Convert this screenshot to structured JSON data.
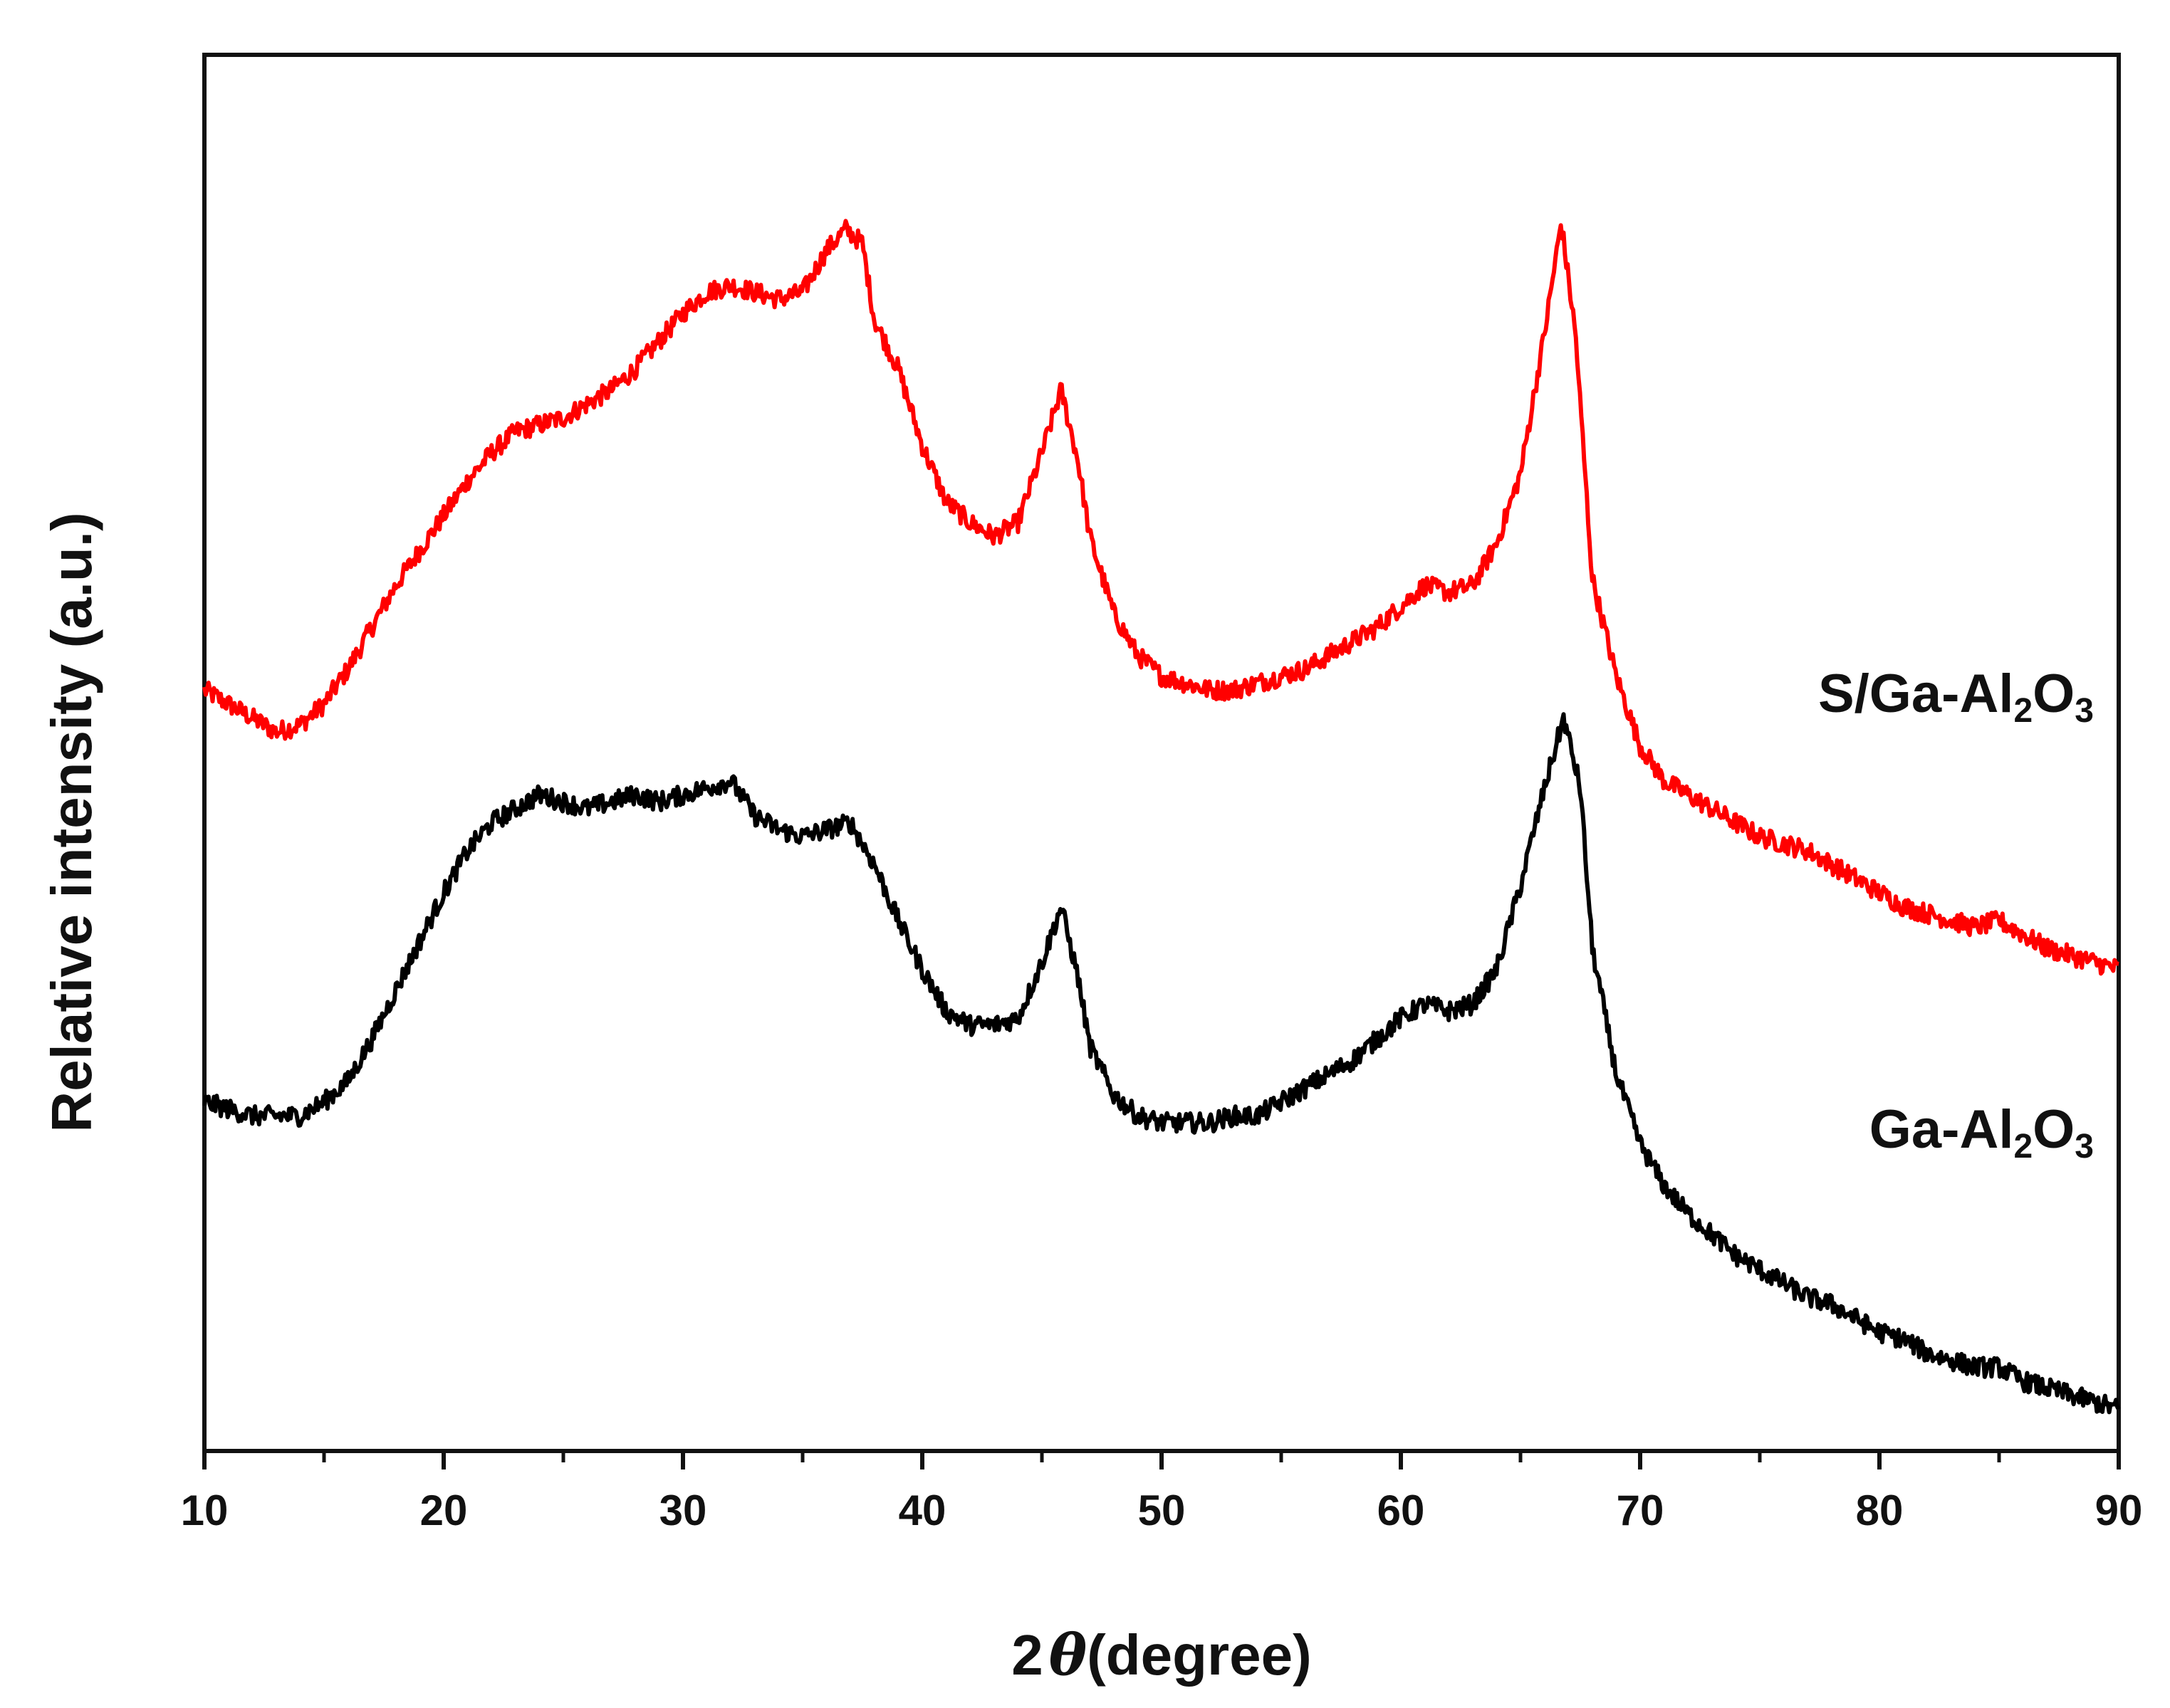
{
  "chart_data": {
    "type": "line",
    "title": "",
    "xlabel_prefix": "2",
    "xlabel_symbol": "θ",
    "xlabel_suffix": "(degree)",
    "ylabel": "Relative intensity (a.u.)",
    "xlim": [
      10,
      90
    ],
    "ylim": [
      0,
      2.0
    ],
    "x_major_ticks": [
      10,
      20,
      30,
      40,
      50,
      60,
      70,
      80,
      90
    ],
    "x_minor_ticks": [
      15,
      25,
      35,
      45,
      55,
      65,
      75,
      85
    ],
    "y_ticks_shown": false,
    "grid": false,
    "legend": "inline labels at right end of each curve",
    "series": [
      {
        "name": "S/Ga-Al2O3",
        "label_main": "S/Ga-Al",
        "label_sub1": "2",
        "label_o": "O",
        "label_sub2": "3",
        "color": "#ff0000",
        "x": [
          10,
          11,
          12,
          13,
          14,
          15,
          16,
          17,
          18,
          19,
          20,
          21,
          22,
          23,
          24,
          25,
          26,
          27,
          28,
          29,
          30,
          31,
          32,
          33,
          34,
          35,
          36,
          36.8,
          37.5,
          38,
          39,
          40,
          41,
          42,
          43,
          44,
          45,
          45.8,
          46.5,
          47,
          48,
          49,
          50,
          51,
          52,
          53,
          54,
          55,
          56,
          57,
          58,
          59,
          60,
          61,
          62,
          63,
          64,
          65,
          66,
          66.7,
          67.3,
          68,
          69,
          70,
          71,
          72,
          73,
          74,
          75,
          76,
          77,
          78,
          79,
          80,
          81,
          82,
          83,
          84,
          85,
          86,
          87,
          88,
          89,
          90
        ],
        "y": [
          1.09,
          1.07,
          1.05,
          1.03,
          1.04,
          1.07,
          1.12,
          1.18,
          1.24,
          1.29,
          1.34,
          1.39,
          1.43,
          1.46,
          1.47,
          1.48,
          1.5,
          1.52,
          1.55,
          1.59,
          1.63,
          1.66,
          1.67,
          1.66,
          1.65,
          1.66,
          1.72,
          1.75,
          1.73,
          1.62,
          1.55,
          1.44,
          1.36,
          1.33,
          1.31,
          1.33,
          1.43,
          1.52,
          1.42,
          1.31,
          1.2,
          1.14,
          1.11,
          1.1,
          1.09,
          1.09,
          1.1,
          1.11,
          1.12,
          1.14,
          1.16,
          1.18,
          1.21,
          1.24,
          1.23,
          1.24,
          1.3,
          1.4,
          1.6,
          1.76,
          1.6,
          1.25,
          1.11,
          1.01,
          0.96,
          0.94,
          0.92,
          0.9,
          0.88,
          0.87,
          0.86,
          0.84,
          0.82,
          0.8,
          0.78,
          0.77,
          0.76,
          0.75,
          0.76,
          0.74,
          0.72,
          0.71,
          0.7,
          0.69
        ]
      },
      {
        "name": "Ga-Al2O3",
        "label_main": "Ga-Al",
        "label_sub1": "2",
        "label_o": "O",
        "label_sub2": "3",
        "color": "#000000",
        "x": [
          10,
          11,
          12,
          13,
          14,
          15,
          16,
          17,
          18,
          19,
          20,
          21,
          22,
          23,
          24,
          25,
          26,
          27,
          28,
          29,
          30,
          31,
          32,
          33,
          34,
          35,
          36,
          37,
          38,
          39,
          40,
          41,
          42,
          43,
          44,
          45,
          45.8,
          46.5,
          47,
          48,
          49,
          50,
          51,
          52,
          53,
          54,
          55,
          56,
          57,
          58,
          59,
          60,
          61,
          62,
          63,
          64,
          65,
          66,
          66.8,
          67.5,
          68,
          69,
          70,
          71,
          72,
          73,
          74,
          75,
          76,
          77,
          78,
          79,
          80,
          81,
          82,
          83,
          84,
          85,
          86,
          87,
          88,
          89,
          90
        ],
        "y": [
          0.5,
          0.49,
          0.48,
          0.48,
          0.48,
          0.5,
          0.53,
          0.59,
          0.66,
          0.73,
          0.8,
          0.86,
          0.9,
          0.92,
          0.94,
          0.93,
          0.92,
          0.93,
          0.94,
          0.93,
          0.94,
          0.95,
          0.96,
          0.91,
          0.89,
          0.88,
          0.89,
          0.9,
          0.84,
          0.76,
          0.69,
          0.63,
          0.61,
          0.61,
          0.62,
          0.7,
          0.78,
          0.68,
          0.58,
          0.51,
          0.48,
          0.47,
          0.47,
          0.47,
          0.48,
          0.48,
          0.5,
          0.52,
          0.54,
          0.56,
          0.59,
          0.62,
          0.64,
          0.63,
          0.64,
          0.69,
          0.81,
          0.95,
          1.05,
          0.95,
          0.72,
          0.54,
          0.44,
          0.38,
          0.34,
          0.31,
          0.28,
          0.26,
          0.24,
          0.22,
          0.21,
          0.19,
          0.17,
          0.16,
          0.14,
          0.13,
          0.12,
          0.12,
          0.1,
          0.09,
          0.08,
          0.07,
          0.06
        ]
      }
    ]
  }
}
